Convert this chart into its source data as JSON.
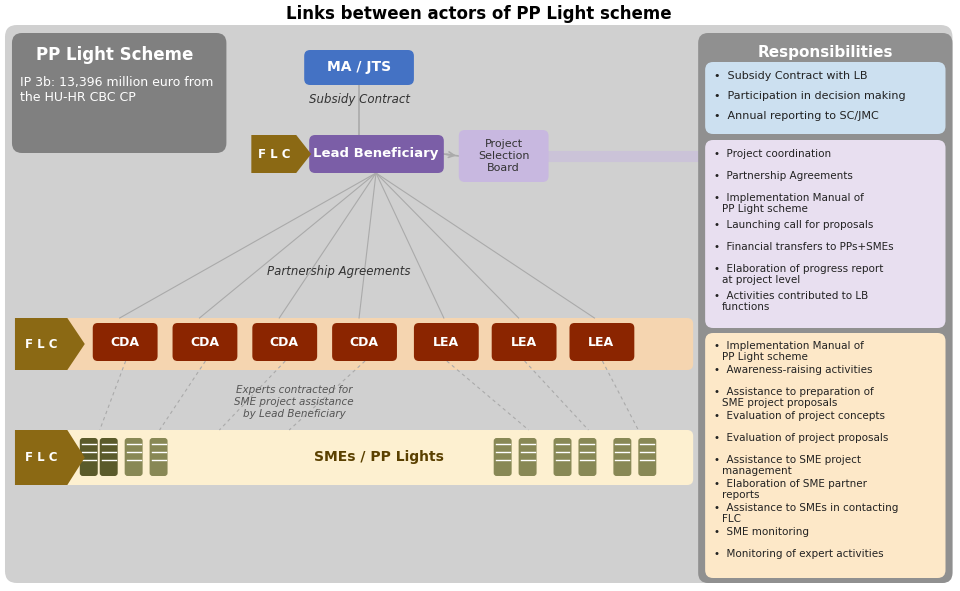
{
  "title": "Links between actors of PP Light scheme",
  "bg_color": "#ffffff",
  "title_color": "#000000",
  "pp_light_box": {
    "title": "PP Light Scheme",
    "subtitle": "IP 3b: 13,396 million euro from\nthe HU-HR CBC CP",
    "bg": "#808080",
    "text_color": "#ffffff"
  },
  "responsibilities_header": {
    "text": "Responsibilities",
    "bg": "#808080",
    "text_color": "#ffffff"
  },
  "resp_box1": {
    "bg": "#cce0f0",
    "items": [
      "Subsidy Contract with LB",
      "Participation in decision making",
      "Annual reporting to SC/JMC"
    ]
  },
  "resp_box2": {
    "bg": "#e8dff0",
    "items": [
      "Project coordination",
      "Partnership Agreements",
      "Implementation Manual of\nPP Light scheme",
      "Launching call for proposals",
      "Financial transfers to PPs+SMEs",
      "Elaboration of progress report\nat project level",
      "Activities contributed to LB\nfunctions"
    ]
  },
  "resp_box3": {
    "bg": "#fde8c8",
    "items": [
      "Implementation Manual of\nPP Light scheme",
      "Awareness-raising activities",
      "Assistance to preparation of\nSME project proposals",
      "Evaluation of project concepts",
      "Evaluation of project proposals",
      "Assistance to SME project\nmanagement",
      "Elaboration of SME partner\nreports",
      "Assistance to SMEs in contacting\nFLC",
      "SME monitoring",
      "Monitoring of expert activities"
    ]
  },
  "ma_jts_box": {
    "text": "MA / JTS",
    "bg": "#4472c4",
    "text_color": "#ffffff"
  },
  "subsidy_contract_label": "Subsidy Contract",
  "flc_color": "#8b6914",
  "flc_text_color": "#ffffff",
  "lead_ben_box": {
    "text": "Lead Beneficiary",
    "bg": "#7b5ea7",
    "text_color": "#ffffff"
  },
  "proj_sel_box": {
    "text": "Project\nSelection\nBoard",
    "bg": "#c8b8e0",
    "text_color": "#333333"
  },
  "partnership_label": "Partnership Agreements",
  "cda_color": "#8b2500",
  "cda_text": "CDA",
  "lea_color": "#8b2500",
  "lea_text": "LEA",
  "row_bg_cda": "#f5d5b0",
  "row_bg_sme": "#fdf0d0",
  "sme_label": "SMEs / PP Lights",
  "experts_label": "Experts contracted for\nSME project assistance\nby Lead Beneficiary",
  "outer_bg": "#d0d0d0"
}
